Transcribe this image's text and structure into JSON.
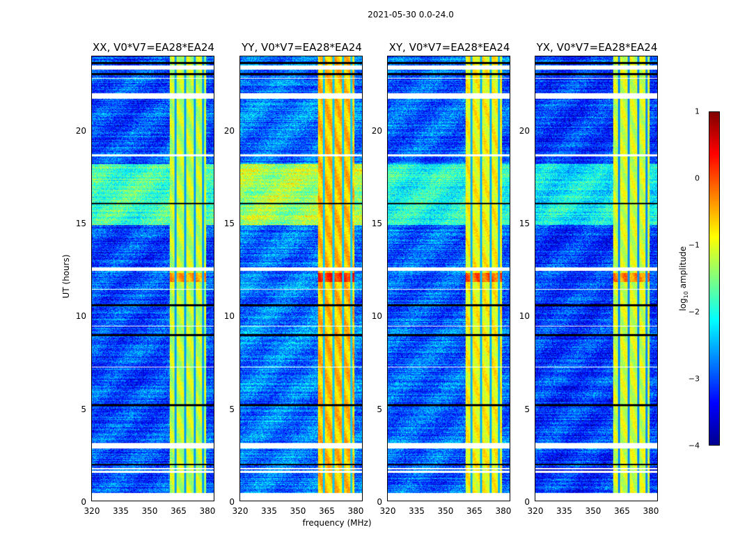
{
  "chart_data": {
    "type": "heatmap",
    "title": "2021-05-30 0.0-24.0",
    "xlabel": "frequency (MHz)",
    "ylabel": "UT (hours)",
    "xlim": [
      320,
      384
    ],
    "ylim": [
      0,
      24
    ],
    "xticks": [
      "320",
      "335",
      "350",
      "365",
      "380"
    ],
    "yticks": [
      "0",
      "5",
      "10",
      "15",
      "20"
    ],
    "panels": [
      {
        "title": "XX, V0*V7=EA28*EA24",
        "bg": -3.0,
        "band": -1.2,
        "rfi_bg": -1.8
      },
      {
        "title": "YY, V0*V7=EA28*EA24",
        "bg": -2.8,
        "band": -0.6,
        "rfi_bg": -1.3
      },
      {
        "title": "XY, V0*V7=EA28*EA24",
        "bg": -2.9,
        "band": -0.9,
        "rfi_bg": -2.0
      },
      {
        "title": "YX, V0*V7=EA28*EA24",
        "bg": -3.1,
        "band": -1.1,
        "rfi_bg": -2.2
      }
    ],
    "rfi_band_mhz": [
      361,
      380
    ],
    "band_dark_channels_mhz": [
      364,
      369,
      374,
      378.5
    ],
    "high_rfi_hours": [
      [
        14.9,
        18.2
      ]
    ],
    "flagged_hours": [
      [
        0,
        0.4
      ],
      [
        1.5,
        1.6
      ],
      [
        1.7,
        1.75
      ],
      [
        2.8,
        3.1
      ],
      [
        12.4,
        12.6
      ],
      [
        11.4,
        11.45
      ],
      [
        18.6,
        18.7
      ],
      [
        21.7,
        22.0
      ],
      [
        23.3,
        23.5
      ],
      [
        22.8,
        22.85
      ],
      [
        7.2,
        7.25
      ],
      [
        9.4,
        9.45
      ]
    ],
    "black_hours": [
      [
        1.9,
        2.0
      ],
      [
        5.1,
        5.2
      ],
      [
        8.9,
        9.0
      ],
      [
        10.5,
        10.6
      ],
      [
        16.0,
        16.1
      ],
      [
        23.0,
        23.1
      ],
      [
        23.6,
        23.7
      ]
    ],
    "colorbar": {
      "label": "log10 amplitude",
      "range": [
        -4,
        1
      ],
      "ticks": [
        "1",
        "0",
        "−1",
        "−2",
        "−3",
        "−4"
      ],
      "cmap": "jet"
    }
  }
}
